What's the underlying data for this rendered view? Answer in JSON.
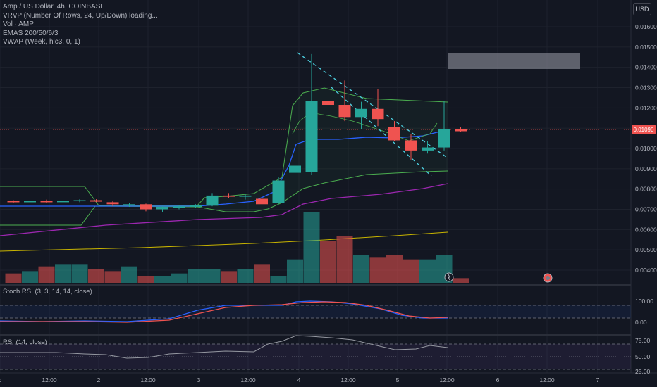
{
  "legend": {
    "symbol_line": "Amp / US Dollar, 4h, COINBASE",
    "vrvp": "VRVP (Number Of Rows, 24, Up/Down) loading...",
    "vol": "Vol · AMP",
    "emas": "EMAS 200/50/6/3",
    "vwap": "VWAP (Week, hlc3, 0, 1)"
  },
  "currency_badge": "USD",
  "current_price_label": "0.01090",
  "price_axis": {
    "ticks": [
      "0.01600",
      "0.01500",
      "0.01400",
      "0.01300",
      "0.01200",
      "0.01100",
      "0.01000",
      "0.00900",
      "0.00800",
      "0.00700",
      "0.00600",
      "0.00500",
      "0.00400"
    ]
  },
  "time_axis": {
    "ticks": [
      "c",
      "12:00",
      "2",
      "12:00",
      "3",
      "12:00",
      "4",
      "12:00",
      "5",
      "12:00",
      "6",
      "12:00",
      "7"
    ]
  },
  "stoch_pane": {
    "title": "Stoch RSI (3, 3, 14, 14, close)",
    "ticks": [
      "100.00",
      "0.00"
    ]
  },
  "rsi_pane": {
    "title": "RSI (14, close)",
    "ticks": [
      "75.00",
      "50.00",
      "25.00"
    ]
  },
  "colors": {
    "bull": "#26a69a",
    "bear": "#ef5350",
    "background": "#131722",
    "ema_blue": "#2962ff",
    "ema_purple": "#9c27b0",
    "ema_yellow": "#c8b400",
    "band_green": "#4caf50"
  },
  "chart_data": {
    "type": "candlestick",
    "candles": [
      {
        "o": 0.0074,
        "h": 0.00745,
        "l": 0.0073,
        "c": 0.00738
      },
      {
        "o": 0.00738,
        "h": 0.00745,
        "l": 0.0073,
        "c": 0.0074
      },
      {
        "o": 0.0074,
        "h": 0.00748,
        "l": 0.00732,
        "c": 0.00735
      },
      {
        "o": 0.00735,
        "h": 0.00745,
        "l": 0.00728,
        "c": 0.00742
      },
      {
        "o": 0.00742,
        "h": 0.0075,
        "l": 0.00735,
        "c": 0.00745
      },
      {
        "o": 0.00745,
        "h": 0.0075,
        "l": 0.00736,
        "c": 0.00738
      },
      {
        "o": 0.00735,
        "h": 0.0074,
        "l": 0.00715,
        "c": 0.00725
      },
      {
        "o": 0.00725,
        "h": 0.00732,
        "l": 0.00712,
        "c": 0.00725
      },
      {
        "o": 0.00725,
        "h": 0.00728,
        "l": 0.0069,
        "c": 0.007
      },
      {
        "o": 0.007,
        "h": 0.00715,
        "l": 0.00688,
        "c": 0.00712
      },
      {
        "o": 0.00708,
        "h": 0.00718,
        "l": 0.007,
        "c": 0.00715
      },
      {
        "o": 0.00712,
        "h": 0.00725,
        "l": 0.00705,
        "c": 0.0072
      },
      {
        "o": 0.00718,
        "h": 0.0078,
        "l": 0.00715,
        "c": 0.00768
      },
      {
        "o": 0.00768,
        "h": 0.0078,
        "l": 0.00755,
        "c": 0.00762
      },
      {
        "o": 0.00762,
        "h": 0.00775,
        "l": 0.00748,
        "c": 0.00768
      },
      {
        "o": 0.00752,
        "h": 0.00768,
        "l": 0.00718,
        "c": 0.00725
      },
      {
        "o": 0.0073,
        "h": 0.0086,
        "l": 0.00725,
        "c": 0.00842
      },
      {
        "o": 0.0088,
        "h": 0.00935,
        "l": 0.00855,
        "c": 0.00915
      },
      {
        "o": 0.00885,
        "h": 0.01465,
        "l": 0.0087,
        "c": 0.01235
      },
      {
        "o": 0.01235,
        "h": 0.01265,
        "l": 0.01045,
        "c": 0.01215
      },
      {
        "o": 0.01215,
        "h": 0.01335,
        "l": 0.01135,
        "c": 0.01155
      },
      {
        "o": 0.01155,
        "h": 0.0123,
        "l": 0.01095,
        "c": 0.01195
      },
      {
        "o": 0.01195,
        "h": 0.01295,
        "l": 0.0111,
        "c": 0.01145
      },
      {
        "o": 0.01105,
        "h": 0.01135,
        "l": 0.01035,
        "c": 0.0104
      },
      {
        "o": 0.0104,
        "h": 0.0107,
        "l": 0.00945,
        "c": 0.0099
      },
      {
        "o": 0.0099,
        "h": 0.01035,
        "l": 0.00975,
        "c": 0.01005
      },
      {
        "o": 0.01005,
        "h": 0.01235,
        "l": 0.0099,
        "c": 0.01095
      },
      {
        "o": 0.01095,
        "h": 0.01105,
        "l": 0.0108,
        "c": 0.01085
      }
    ],
    "volume": [
      4,
      5,
      7,
      8,
      8,
      6,
      5,
      7,
      3,
      3,
      4,
      6,
      6,
      5,
      6,
      8,
      3,
      10,
      30,
      18,
      20,
      12,
      11,
      12,
      10,
      10,
      12,
      2
    ]
  }
}
